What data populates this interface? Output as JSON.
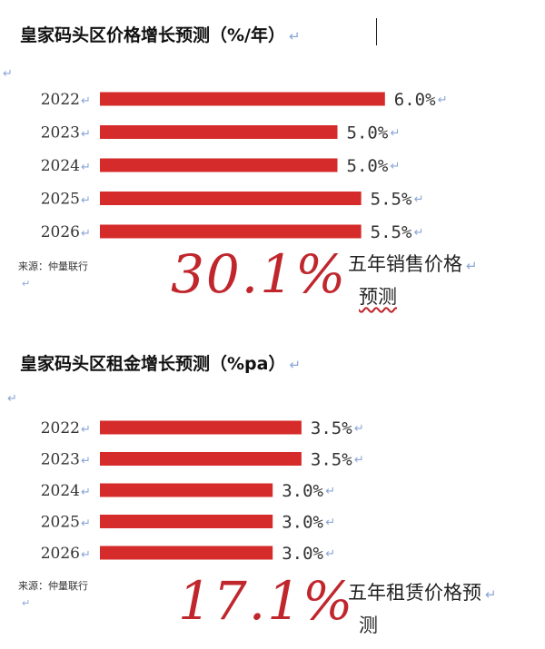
{
  "sections": [
    {
      "title": "皇家码头区价格增长预测（%/年）",
      "source": "来源：仲量联行",
      "big_number": "30.1%",
      "summary_line1": "五年销售价格",
      "summary_line2": "预测"
    },
    {
      "title": "皇家码头区租金增长预测（%pa）",
      "source": "来源：仲量联行",
      "big_number": "17.1%",
      "summary_line1": "五年租赁价格预",
      "summary_line2": "测"
    }
  ],
  "chart_data": [
    {
      "type": "bar",
      "orientation": "horizontal",
      "title": "皇家码头区价格增长预测（%/年）",
      "categories": [
        "2022",
        "2023",
        "2024",
        "2025",
        "2026"
      ],
      "values": [
        6.0,
        5.0,
        5.0,
        5.5,
        5.5
      ],
      "labels": [
        "6.0%",
        "5.0%",
        "5.0%",
        "5.5%",
        "5.5%"
      ],
      "color": "#d62b2b"
    },
    {
      "type": "bar",
      "orientation": "horizontal",
      "title": "皇家码头区租金增长预测（%pa）",
      "categories": [
        "2022",
        "2023",
        "2024",
        "2025",
        "2026"
      ],
      "values": [
        3.5,
        3.5,
        3.0,
        3.0,
        3.0
      ],
      "labels": [
        "3.5%",
        "3.5%",
        "3.0%",
        "3.0%",
        "3.0%"
      ],
      "color": "#d62b2b"
    }
  ],
  "colors": {
    "bar": "#d62b2b",
    "big_number": "#c0272d",
    "format_mark": "#8aa6d6"
  }
}
